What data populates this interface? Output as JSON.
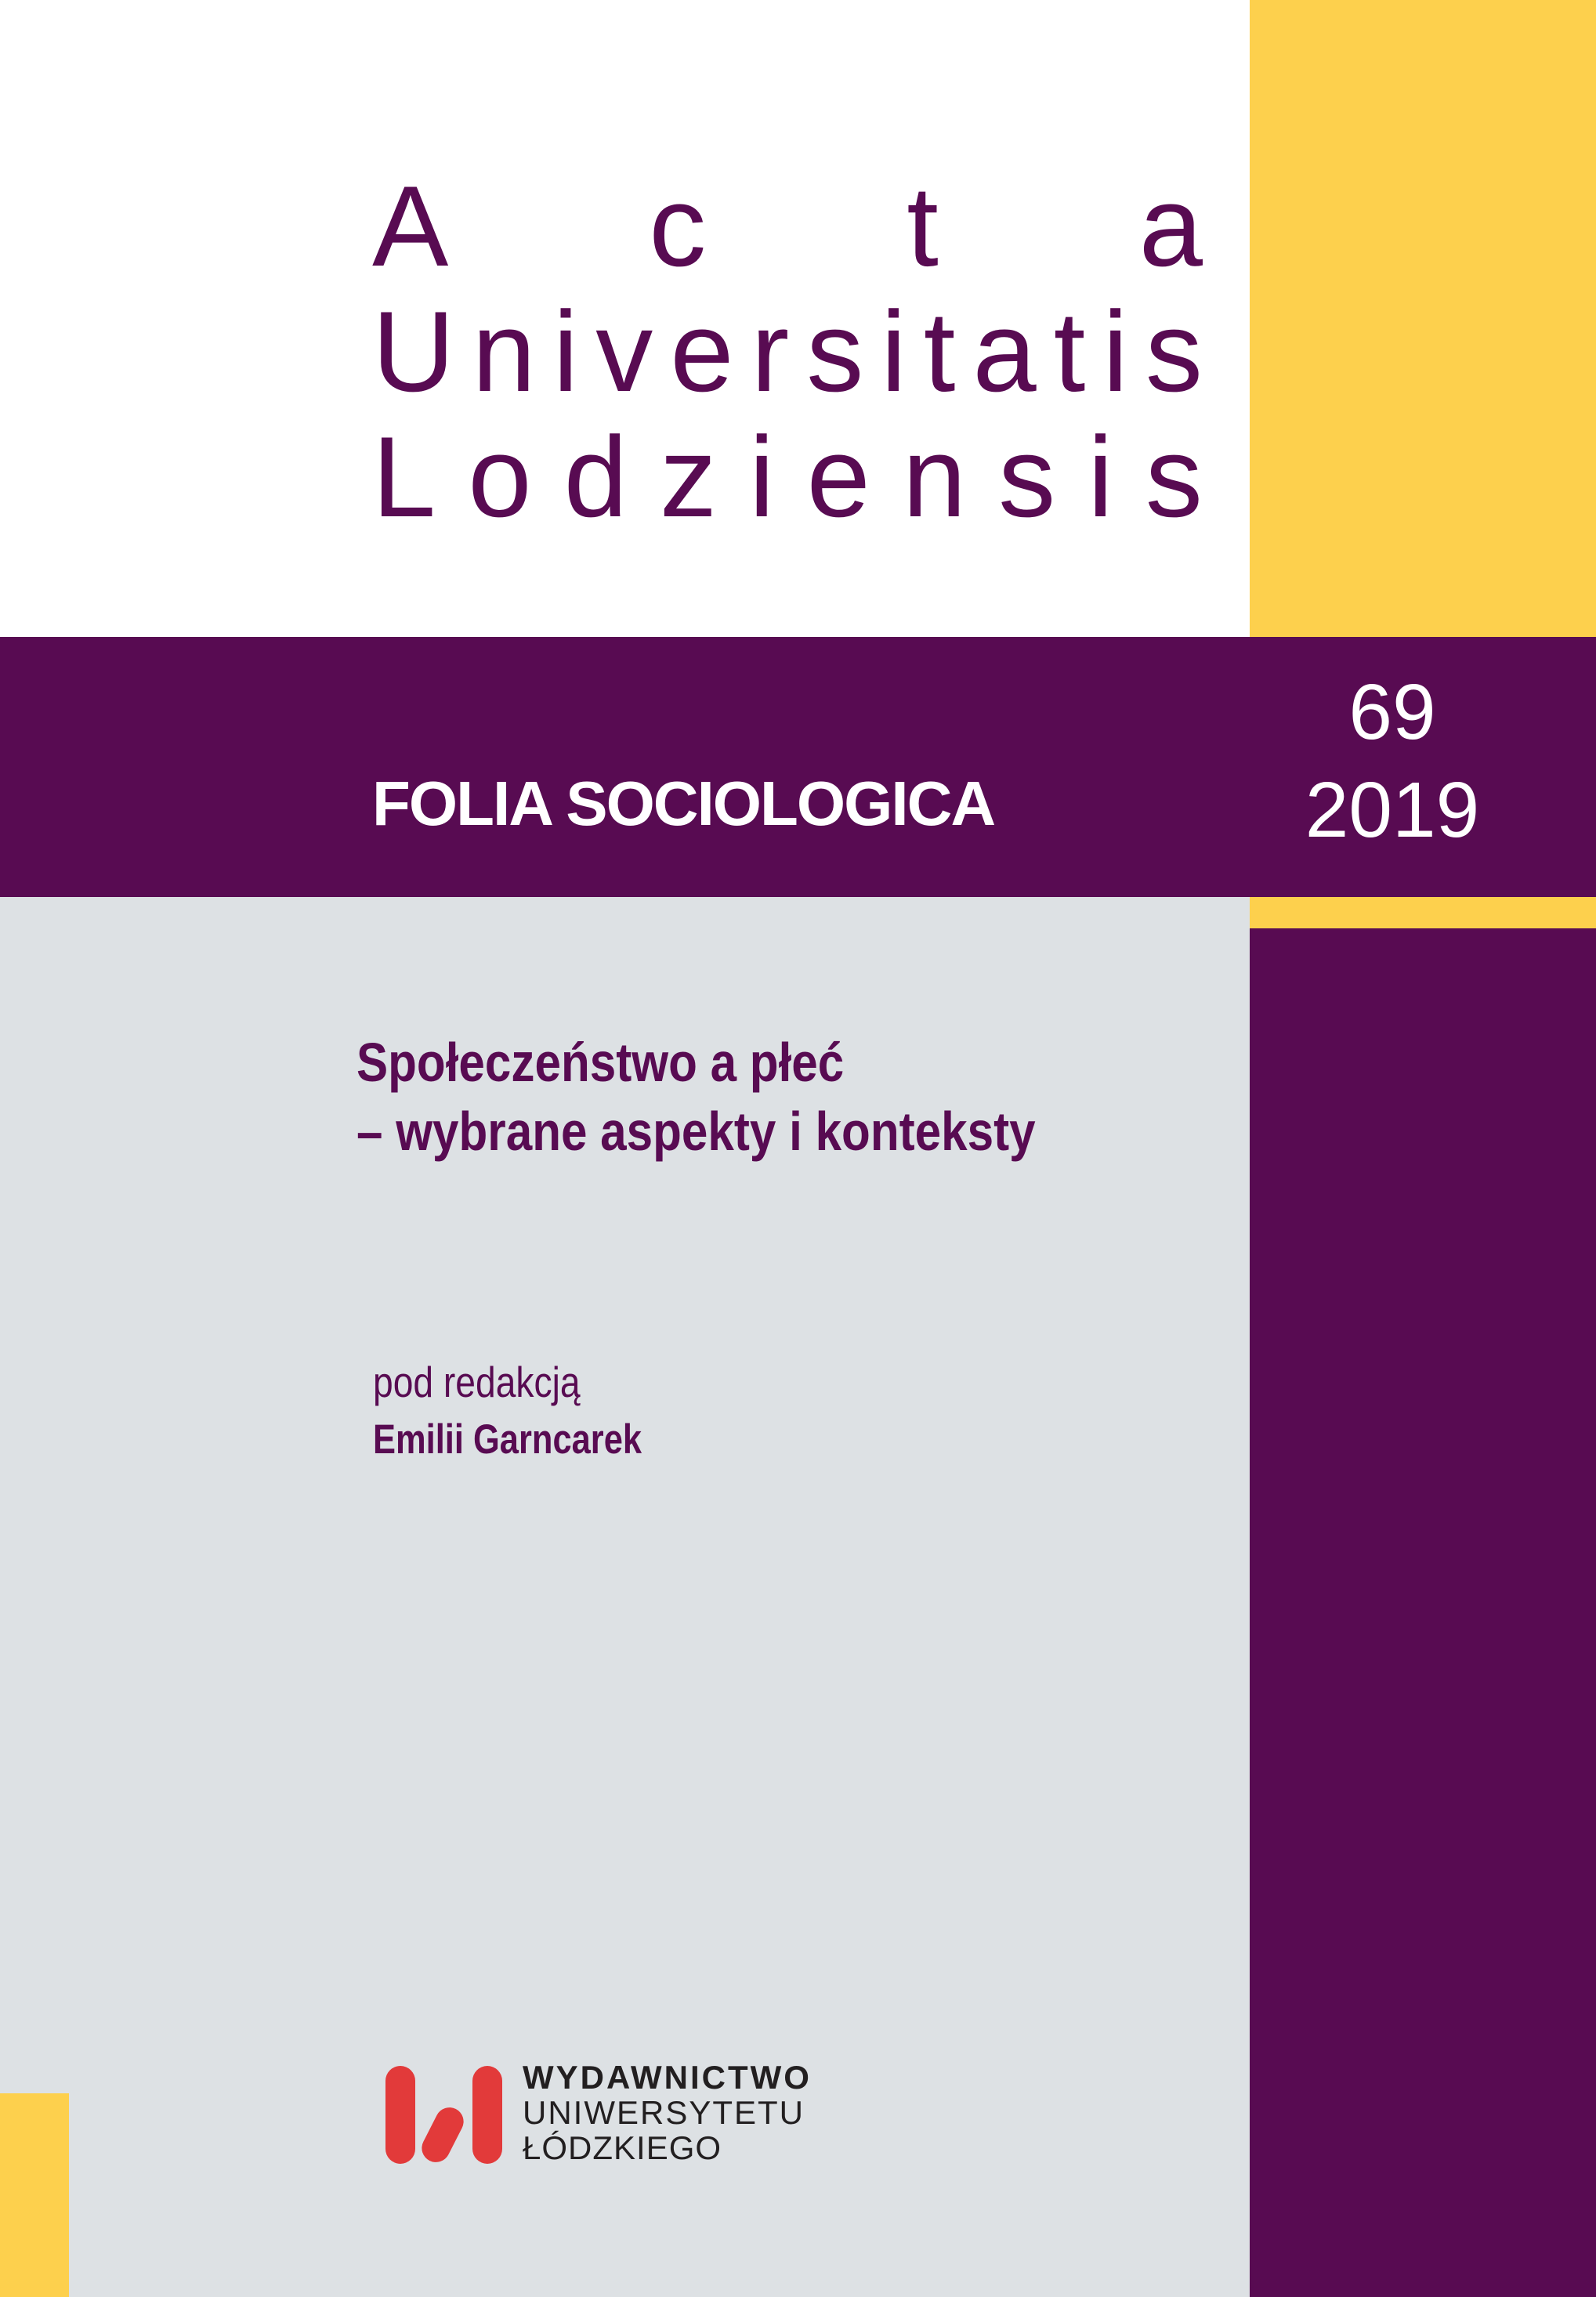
{
  "cover": {
    "series_title": {
      "lines": [
        "Acta",
        "Universitatis",
        "Lodziensis"
      ]
    },
    "band": {
      "title": "FOLIA SOCIOLOGICA"
    },
    "issue": {
      "number": "69",
      "year": "2019"
    },
    "volume": {
      "title_line1": "Społeczeństwo a płeć",
      "title_line2": "– wybrane aspekty i konteksty",
      "edited_by_label": "pod redakcją",
      "editor_name": "Emilii Garncarek"
    },
    "publisher": {
      "logo_name": "university-of-lodz-press-logo",
      "line1": "WYDAWNICTWO",
      "line2": "UNIWERSYTETU",
      "line3": "ŁÓDZKIEGO"
    },
    "colors": {
      "purple": "#580b52",
      "yellow": "#fdd04d",
      "gray": "#dde1e4",
      "red": "#e23a3a",
      "text_dark": "#221f20",
      "white": "#ffffff"
    }
  }
}
